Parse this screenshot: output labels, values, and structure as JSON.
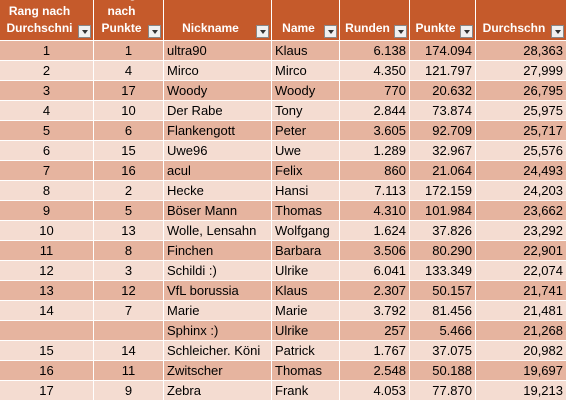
{
  "table": {
    "header": [
      "Rang nach Durchschni",
      "Rang nach Punkte",
      "Nickname",
      "Name",
      "Runden",
      "Punkte",
      "Durchschn"
    ],
    "rows": [
      [
        1,
        1,
        "ultra90",
        "Klaus",
        "6.138",
        "174.094",
        "28,363"
      ],
      [
        2,
        4,
        "Mirco",
        "Mirco",
        "4.350",
        "121.797",
        "27,999"
      ],
      [
        3,
        17,
        "Woody",
        "Woody",
        "770",
        "20.632",
        "26,795"
      ],
      [
        4,
        10,
        "Der Rabe",
        "Tony",
        "2.844",
        "73.874",
        "25,975"
      ],
      [
        5,
        6,
        "Flankengott",
        "Peter",
        "3.605",
        "92.709",
        "25,717"
      ],
      [
        6,
        15,
        "Uwe96",
        "Uwe",
        "1.289",
        "32.967",
        "25,576"
      ],
      [
        7,
        16,
        "acul",
        "Felix",
        "860",
        "21.064",
        "24,493"
      ],
      [
        8,
        2,
        "Hecke",
        "Hansi",
        "7.113",
        "172.159",
        "24,203"
      ],
      [
        9,
        5,
        "Böser Mann",
        "Thomas",
        "4.310",
        "101.984",
        "23,662"
      ],
      [
        10,
        13,
        "Wolle, Lensahn",
        "Wolfgang",
        "1.624",
        "37.826",
        "23,292"
      ],
      [
        11,
        8,
        "Finchen",
        "Barbara",
        "3.506",
        "80.290",
        "22,901"
      ],
      [
        12,
        3,
        "Schildi :)",
        "Ulrike",
        "6.041",
        "133.349",
        "22,074"
      ],
      [
        13,
        12,
        "VfL borussia",
        "Klaus",
        "2.307",
        "50.157",
        "21,741"
      ],
      [
        14,
        7,
        "Marie",
        "Marie",
        "3.792",
        "81.456",
        "21,481"
      ],
      [
        null,
        null,
        "Sphinx :)",
        "Ulrike",
        "257",
        "5.466",
        "21,268"
      ],
      [
        15,
        14,
        "Schleicher. Köni",
        "Patrick",
        "1.767",
        "37.075",
        "20,982"
      ],
      [
        16,
        11,
        "Zwitscher",
        "Thomas",
        "2.548",
        "50.188",
        "19,697"
      ],
      [
        17,
        9,
        "Zebra",
        "Frank",
        "4.053",
        "77.870",
        "19,213"
      ]
    ]
  }
}
